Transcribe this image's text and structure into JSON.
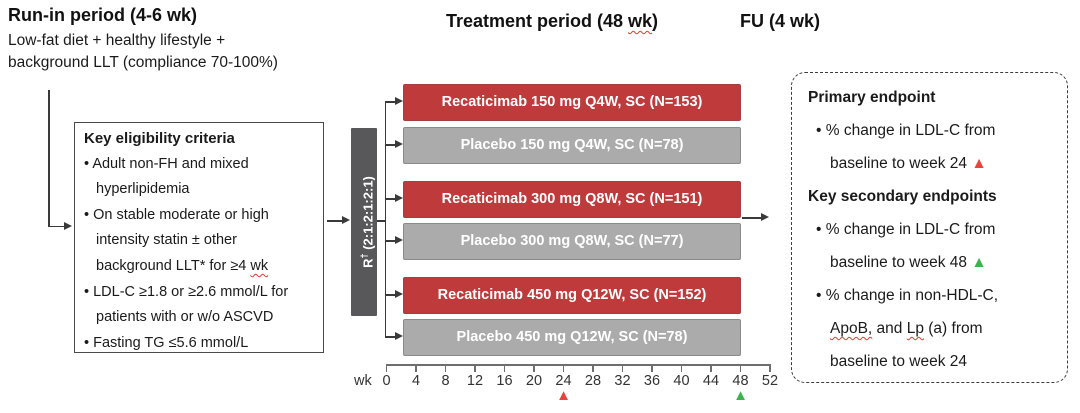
{
  "header": {
    "runin_title": "Run-in period (4-6 wk)",
    "runin_line1": "Low-fat diet + healthy lifestyle +",
    "runin_line2": "background LLT (compliance 70-100%)",
    "treatment_title_segs": [
      {
        "t": "Treatment period (48 "
      },
      {
        "t": "wk",
        "cls": "squiggle"
      },
      {
        "t": ")"
      }
    ],
    "fu_title": "FU (4 wk)"
  },
  "eligibility": {
    "title": "Key eligibility criteria",
    "items": [
      [
        {
          "t": "Adult non-FH and mixed hyperlipidemia"
        }
      ],
      [
        {
          "t": "On stable moderate or high intensity statin ± other background LLT* for ≥4 "
        },
        {
          "t": "wk",
          "cls": "squiggle"
        }
      ],
      [
        {
          "t": "LDL-C ≥1.8 or ≥2.6 mmol/L for patients with or w/o ASCVD"
        }
      ],
      [
        {
          "t": "Fasting TG ≤5.6 mmol/L"
        }
      ]
    ]
  },
  "randomization": {
    "label_segs": [
      {
        "t": "R"
      },
      {
        "t": "†",
        "cls": "sup"
      },
      {
        "t": " (2:1:2:1:2:1)"
      }
    ],
    "ratio": "2:1:2:1:2:1"
  },
  "arms": [
    {
      "label": "Recaticimab 150 mg Q4W, SC (N=153)",
      "type": "active"
    },
    {
      "label": "Placebo 150 mg Q4W, SC (N=78)",
      "type": "placebo"
    },
    {
      "label": "Recaticimab 300 mg Q8W, SC (N=151)",
      "type": "active"
    },
    {
      "label": "Placebo 300 mg Q8W, SC (N=77)",
      "type": "placebo"
    },
    {
      "label": "Recaticimab 450 mg Q12W, SC (N=152)",
      "type": "active"
    },
    {
      "label": "Placebo 450 mg Q12W, SC (N=78)",
      "type": "placebo"
    }
  ],
  "axis": {
    "unit_label": "wk",
    "weeks": [
      0,
      4,
      8,
      12,
      16,
      20,
      24,
      28,
      32,
      36,
      40,
      44,
      48,
      52
    ],
    "markers": [
      {
        "week": 24,
        "color": "#e8433c",
        "name": "primary-endpoint-week24-marker"
      },
      {
        "week": 48,
        "color": "#3cb44b",
        "name": "secondary-endpoint-week48-marker"
      }
    ]
  },
  "endpoints": {
    "primary_title": "Primary endpoint",
    "primary_items": [
      [
        {
          "t": "% change in LDL-C from baseline to week 24 "
        },
        {
          "t": "▲",
          "cls": "tri-red",
          "name": "red-triangle-icon"
        }
      ]
    ],
    "secondary_title": "Key secondary endpoints",
    "secondary_items": [
      [
        {
          "t": "% change in LDL-C from baseline to week 48 "
        },
        {
          "t": "▲",
          "cls": "tri-green",
          "name": "green-triangle-icon"
        }
      ],
      [
        {
          "t": "% change in non-HDL-C, "
        },
        {
          "t": "ApoB,",
          "cls": "squiggle"
        },
        {
          "t": " and "
        },
        {
          "t": "Lp",
          "cls": "squiggle"
        },
        {
          "t": " (a) from baseline to week 24"
        }
      ]
    ]
  },
  "colors": {
    "active_arm_fill": "#be3a3b",
    "active_arm_border": "#a3403f",
    "placebo_arm_fill": "#ababab",
    "placebo_arm_border": "#8a8a8a",
    "randomization_bar": "#58585a",
    "marker_red": "#e8433c",
    "marker_green": "#3cb44b",
    "squiggle_red": "#e03c31",
    "line": "#3a3a3a"
  }
}
